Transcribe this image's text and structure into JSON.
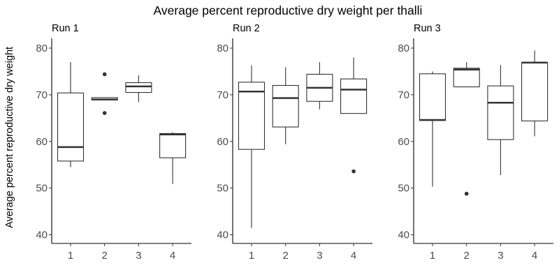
{
  "chart_data": {
    "type": "boxplot",
    "title": "Average percent reproductive dry weight per thalli",
    "ylabel": "Average percent reproductive dry weight",
    "xlabel": "",
    "ylim": [
      38,
      82
    ],
    "yticks": [
      40,
      50,
      60,
      70,
      80
    ],
    "categories": [
      "1",
      "2",
      "3",
      "4"
    ],
    "grid": false,
    "panels": [
      {
        "label": "Run 1",
        "boxes": [
          {
            "category": "1",
            "whisker_low": 54.5,
            "q1": 55.8,
            "median": 58.8,
            "q3": 70.4,
            "whisker_high": 77.0,
            "outliers": []
          },
          {
            "category": "2",
            "whisker_low": 68.9,
            "q1": 68.9,
            "median": 69.0,
            "q3": 69.4,
            "whisker_high": 69.4,
            "outliers": [
              74.4,
              66.1
            ]
          },
          {
            "category": "3",
            "whisker_low": 68.4,
            "q1": 70.5,
            "median": 71.8,
            "q3": 72.6,
            "whisker_high": 74.2,
            "outliers": []
          },
          {
            "category": "4",
            "whisker_low": 50.9,
            "q1": 56.5,
            "median": 61.5,
            "q3": 61.7,
            "whisker_high": 62.0,
            "outliers": []
          }
        ]
      },
      {
        "label": "Run 2",
        "boxes": [
          {
            "category": "1",
            "whisker_low": 41.5,
            "q1": 58.3,
            "median": 70.7,
            "q3": 72.7,
            "whisker_high": 76.3,
            "outliers": []
          },
          {
            "category": "2",
            "whisker_low": 59.4,
            "q1": 63.1,
            "median": 69.3,
            "q3": 72.0,
            "whisker_high": 75.9,
            "outliers": []
          },
          {
            "category": "3",
            "whisker_low": 66.9,
            "q1": 68.6,
            "median": 71.5,
            "q3": 74.4,
            "whisker_high": 77.0,
            "outliers": []
          },
          {
            "category": "4",
            "whisker_low": 66.0,
            "q1": 66.0,
            "median": 71.1,
            "q3": 73.4,
            "whisker_high": 78.0,
            "outliers": [
              53.6
            ]
          }
        ]
      },
      {
        "label": "Run 3",
        "boxes": [
          {
            "category": "1",
            "whisker_low": 50.3,
            "q1": 64.5,
            "median": 64.6,
            "q3": 74.5,
            "whisker_high": 75.0,
            "outliers": []
          },
          {
            "category": "2",
            "whisker_low": 71.7,
            "q1": 71.7,
            "median": 75.4,
            "q3": 75.7,
            "whisker_high": 77.0,
            "outliers": [
              48.8
            ]
          },
          {
            "category": "3",
            "whisker_low": 52.8,
            "q1": 60.4,
            "median": 68.3,
            "q3": 71.9,
            "whisker_high": 76.4,
            "outliers": []
          },
          {
            "category": "4",
            "whisker_low": 61.1,
            "q1": 64.4,
            "median": 76.9,
            "q3": 76.9,
            "whisker_high": 79.5,
            "outliers": []
          }
        ]
      }
    ]
  }
}
